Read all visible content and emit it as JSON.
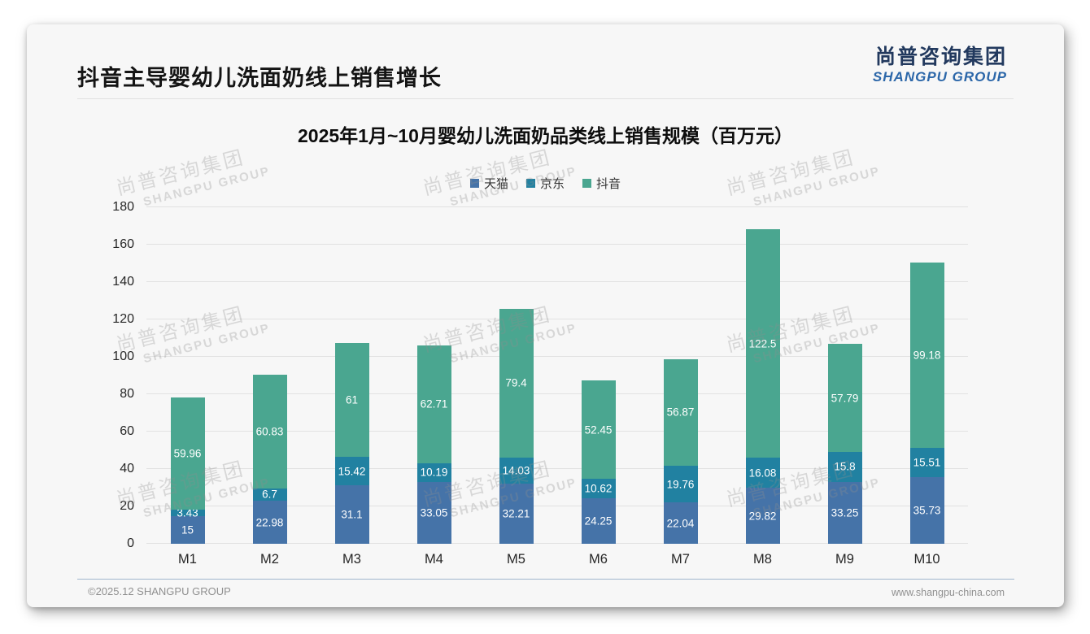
{
  "header": {
    "title": "抖音主导婴幼儿洗面奶线上销售增长",
    "logo_cn": "尚普咨询集团",
    "logo_en": "SHANGPU GROUP"
  },
  "watermark": {
    "line1": "尚普咨询集团",
    "line2": "SHANGPU GROUP"
  },
  "chart_data": {
    "type": "bar",
    "stacked": true,
    "title": "2025年1月~10月婴幼儿洗面奶品类线上销售规模（百万元）",
    "categories": [
      "M1",
      "M2",
      "M3",
      "M4",
      "M5",
      "M6",
      "M7",
      "M8",
      "M9",
      "M10"
    ],
    "series": [
      {
        "name": "天猫",
        "color": "#4573a8",
        "values": [
          15,
          22.98,
          31.1,
          33.05,
          32.21,
          24.25,
          22.04,
          29.82,
          33.25,
          35.73
        ]
      },
      {
        "name": "京东",
        "color": "#2181a1",
        "values": [
          3.43,
          6.7,
          15.42,
          10.19,
          14.03,
          10.62,
          19.76,
          16.08,
          15.8,
          15.51
        ]
      },
      {
        "name": "抖音",
        "color": "#4aa690",
        "values": [
          59.96,
          60.83,
          61,
          62.71,
          79.4,
          52.45,
          56.87,
          122.5,
          57.79,
          99.18
        ]
      }
    ],
    "xlabel": "",
    "ylabel": "",
    "ylim": [
      0,
      180
    ],
    "ytick_step": 20,
    "grid": true,
    "legend_position": "top",
    "unit": "百万元"
  },
  "footer": {
    "left": "©2025.12 SHANGPU GROUP",
    "right": "www.shangpu-china.com"
  }
}
